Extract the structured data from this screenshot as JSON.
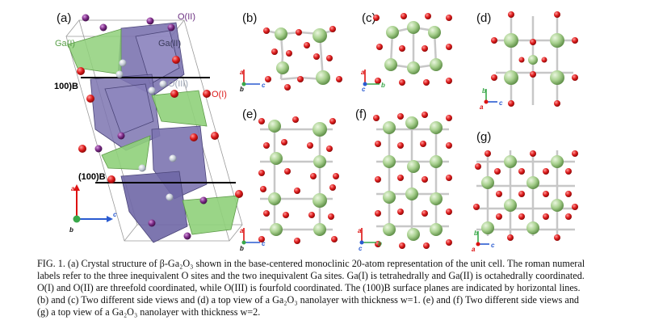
{
  "panels": {
    "a": "(a)",
    "b": "(b)",
    "c": "(c)",
    "d": "(d)",
    "e": "(e)",
    "f": "(f)",
    "g": "(g)"
  },
  "site_labels": {
    "ga1": "Ga(I)",
    "ga2": "Ga(II)",
    "o1": "O(I)",
    "o2": "O(II)",
    "o3": "O(III)"
  },
  "plane_labels": {
    "upper": "100)B",
    "lower": "(100)B"
  },
  "axes": {
    "a": "a",
    "b": "b",
    "c": "c"
  },
  "colors": {
    "ga": "#a6cf8c",
    "o": "#dd1b1b",
    "o_type2": "#7b2a86",
    "o_type3": "#c4cbd6",
    "tetra": "#8fd07a",
    "octa": "#7c74b0",
    "bond": "#b0b0b0"
  },
  "caption": {
    "line1": "FIG. 1.  (a) Crystal structure of β-Ga₂O₃ shown in the base-centered monoclinic 20-atom representation of the unit cell. The roman numeral",
    "line2": "labels refer to the three inequivalent O sites and the two inequivalent Ga sites. Ga(I) is tetrahedrally and Ga(II) is octahedrally coordinated.",
    "line3": "O(I) and O(II) are threefold coordinated, while O(III) is fourfold coordinated. The (100)B surface planes are indicated by horizontal lines.",
    "line4": "(b) and (c) Two different side views and (d) a top view of a Ga₂O₃ nanolayer with thickness w=1. (e) and (f) Two different side views and",
    "line5": "(g) a top view of a Ga₂O₃ nanolayer with thickness w=2."
  }
}
